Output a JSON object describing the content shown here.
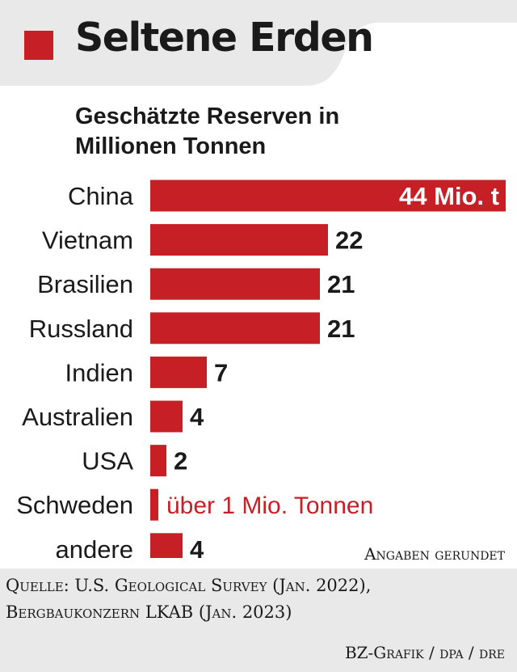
{
  "header": {
    "title": "Seltene Erden"
  },
  "colors": {
    "accent": "#c62026",
    "panel": "#e9e9e9",
    "text": "#1a1a1a"
  },
  "chart_data": {
    "type": "bar",
    "orientation": "horizontal",
    "title": "Geschätzte Reserven in Millionen Tonnen",
    "categories": [
      "China",
      "Vietnam",
      "Brasilien",
      "Russland",
      "Indien",
      "Australien",
      "USA",
      "Schweden",
      "andere"
    ],
    "values": [
      44,
      22,
      21,
      21,
      7,
      4,
      2,
      1,
      4
    ],
    "data_labels": [
      "44 Mio. t",
      "22",
      "21",
      "21",
      "7",
      "4",
      "2",
      "über 1 Mio. Tonnen",
      "4"
    ],
    "unit": "Millionen Tonnen",
    "grid": false,
    "legend": "none"
  },
  "note": "Angaben gerundet",
  "source": {
    "line1": "Quelle: U.S. Geological Survey (Jan. 2022),",
    "line2": "Bergbaukonzern LKAB (Jan. 2023)"
  },
  "credit": "BZ-Grafik / dpa / dre"
}
